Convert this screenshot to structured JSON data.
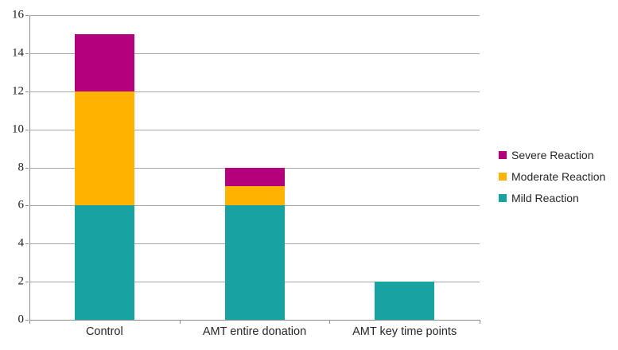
{
  "chart_data": {
    "type": "bar",
    "stacked": true,
    "categories": [
      "Control",
      "AMT entire donation",
      "AMT key time points"
    ],
    "series": [
      {
        "name": "Mild Reaction",
        "color": "#18A2A2",
        "values": [
          6,
          6,
          2
        ]
      },
      {
        "name": "Moderate Reaction",
        "color": "#FFB200",
        "values": [
          6,
          1,
          0
        ]
      },
      {
        "name": "Severe Reaction",
        "color": "#B4007D",
        "values": [
          3,
          1,
          0
        ]
      }
    ],
    "totals": [
      15,
      8,
      2
    ],
    "ylim": [
      0,
      16
    ],
    "yticks": [
      0,
      2,
      4,
      6,
      8,
      10,
      12,
      14,
      16
    ],
    "grid": true,
    "legend_position": "right",
    "legend_order": [
      "Severe Reaction",
      "Moderate Reaction",
      "Mild Reaction"
    ],
    "xlabel": "",
    "ylabel": ""
  },
  "styles": {
    "gridline_color": "#A6A6A6",
    "axis_color": "#8C8C8C",
    "tick_label_color": "#1c1c1c",
    "category_label_color": "#262626",
    "background_color": "#FFFFFF"
  }
}
